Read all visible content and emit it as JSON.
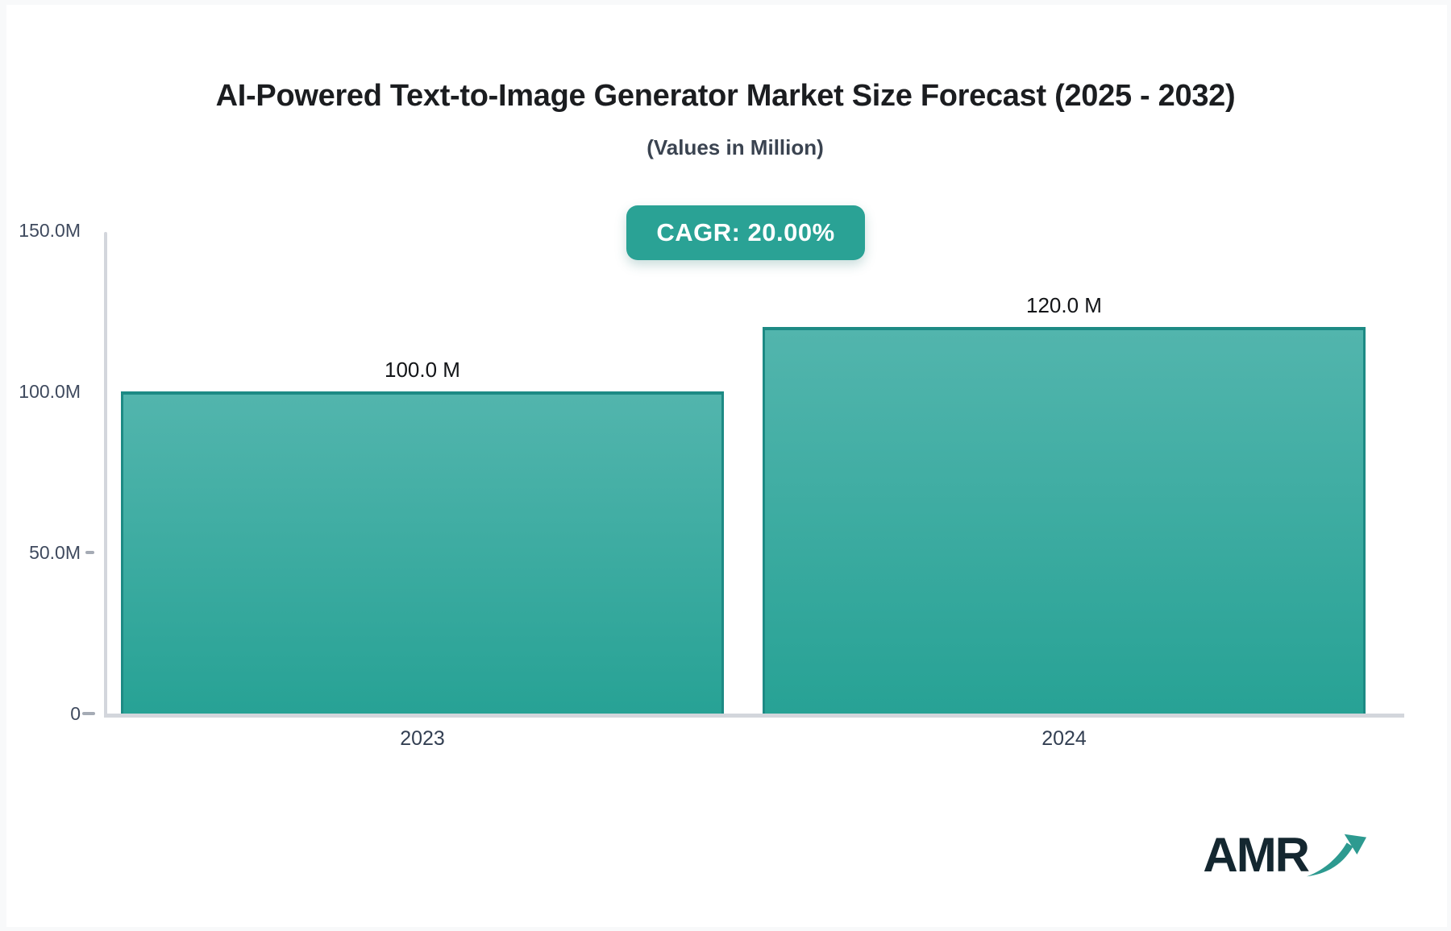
{
  "page": {
    "title": "AI-Powered Text-to-Image Generator Market Size Forecast (2025 - 2032)",
    "subtitle": "(Values in Million)",
    "cagr_label": "CAGR: 20.00%"
  },
  "chart_data": {
    "type": "bar",
    "title": "AI-Powered Text-to-Image Generator Market Size Forecast (2025 - 2032)",
    "subtitle": "(Values in Million)",
    "cagr_percent": "20.00%",
    "categories": [
      "2023",
      "2024"
    ],
    "values": [
      100.0,
      120.0
    ],
    "value_labels": [
      "100.0 M",
      "120.0 M"
    ],
    "ylabel": "",
    "xlabel": "",
    "ylim": [
      0,
      150
    ],
    "yticks": [
      {
        "value": 150,
        "label": "150.0M",
        "dash": false
      },
      {
        "value": 100,
        "label": "100.0M",
        "dash": false
      },
      {
        "value": 50,
        "label": "50.0M",
        "dash": true
      },
      {
        "value": 0,
        "label": "0",
        "dash": true
      }
    ],
    "grid": false,
    "legend": "none",
    "bar_gradient_top": "#52b5ad",
    "bar_gradient_bottom": "#27a295",
    "bar_border_color": "#1d8a84"
  },
  "colors": {
    "accent_teal": "#2aa295",
    "axis_gray": "#d3d6dc",
    "tick_text": "#3f4a5e",
    "title_text": "#1b1d20",
    "logo_text": "#142730",
    "logo_arrow": "#2d9a90"
  },
  "logo": {
    "text": "AMR",
    "arrow_icon": "trend-up-arrow"
  }
}
